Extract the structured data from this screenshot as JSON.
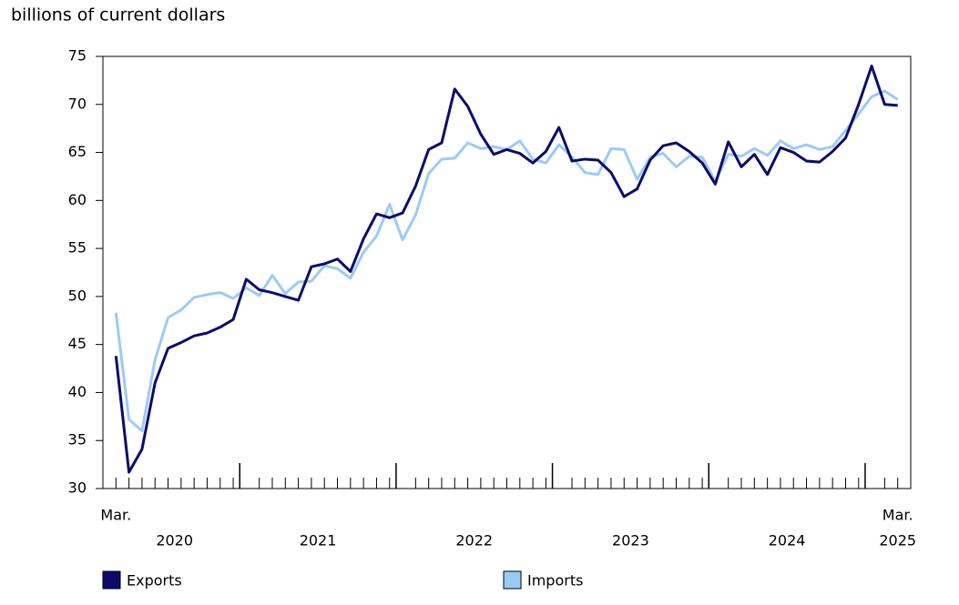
{
  "chart_data": {
    "type": "line",
    "y_label": "billions of current dollars",
    "categories": [
      "Mar.",
      null,
      null,
      null,
      null,
      null,
      null,
      null,
      null,
      null,
      null,
      null,
      null,
      null,
      null,
      null,
      null,
      null,
      null,
      null,
      null,
      null,
      null,
      null,
      null,
      null,
      null,
      null,
      null,
      null,
      null,
      null,
      null,
      null,
      null,
      null,
      null,
      null,
      null,
      null,
      null,
      null,
      null,
      null,
      null,
      null,
      null,
      null,
      null,
      null,
      null,
      null,
      null,
      null,
      null,
      null,
      null,
      null,
      null,
      null,
      "Mar."
    ],
    "year_labels": [
      "2020",
      "2021",
      "2022",
      "2023",
      "2024",
      "2025"
    ],
    "series": [
      {
        "name": "Exports",
        "color": "#0b0b6e",
        "values": [
          43.8,
          31.7,
          34.1,
          41.0,
          44.6,
          45.2,
          45.9,
          46.2,
          46.8,
          47.6,
          51.8,
          50.7,
          50.4,
          50.0,
          49.6,
          53.1,
          53.4,
          53.9,
          52.6,
          56.0,
          58.6,
          58.2,
          58.7,
          61.5,
          65.3,
          66.0,
          71.6,
          69.8,
          66.9,
          64.8,
          65.3,
          64.9,
          63.9,
          65.1,
          67.6,
          64.1,
          64.3,
          64.2,
          62.9,
          60.4,
          61.2,
          64.2,
          65.7,
          66.0,
          65.1,
          63.9,
          61.7,
          66.1,
          63.5,
          64.8,
          62.7,
          65.5,
          65.0,
          64.1,
          64.0,
          65.1,
          66.5,
          70.0,
          74.0,
          70.0,
          69.9
        ]
      },
      {
        "name": "Imports",
        "color": "#99ccf5",
        "values": [
          48.3,
          37.2,
          36.0,
          43.4,
          47.8,
          48.6,
          49.9,
          50.2,
          50.4,
          49.8,
          50.9,
          50.1,
          52.2,
          50.3,
          51.5,
          51.6,
          53.2,
          52.9,
          51.9,
          54.6,
          56.3,
          59.6,
          55.9,
          58.5,
          62.8,
          64.3,
          64.4,
          66.0,
          65.4,
          65.6,
          65.3,
          66.2,
          64.3,
          63.9,
          65.8,
          64.5,
          62.9,
          62.7,
          65.4,
          65.3,
          62.2,
          64.5,
          64.9,
          63.5,
          64.6,
          64.5,
          62.0,
          64.8,
          64.6,
          65.4,
          64.7,
          66.2,
          65.4,
          65.8,
          65.3,
          65.6,
          67.3,
          69.0,
          70.8,
          71.4,
          70.5
        ]
      }
    ],
    "ylim": [
      30,
      75
    ],
    "yticks": [
      30,
      35,
      40,
      45,
      50,
      55,
      60,
      65,
      70,
      75
    ],
    "grid": false
  }
}
